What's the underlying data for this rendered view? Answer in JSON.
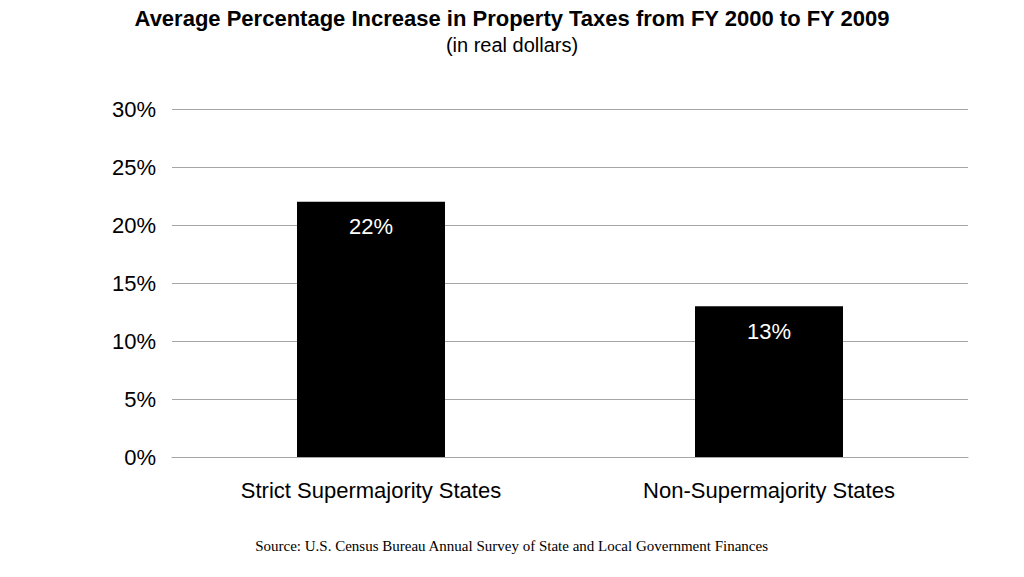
{
  "chart_data": {
    "type": "bar",
    "title": "Average Percentage Increase in Property Taxes from FY 2000 to FY 2009",
    "subtitle": "(in real dollars)",
    "categories": [
      "Strict Supermajority States",
      "Non-Supermajority States"
    ],
    "values": [
      22,
      13
    ],
    "value_labels": [
      "22%",
      "13%"
    ],
    "color": "#000000",
    "ylim": [
      0,
      30
    ],
    "yticks": [
      {
        "value": 0,
        "label": "0%"
      },
      {
        "value": 5,
        "label": "5%"
      },
      {
        "value": 10,
        "label": "10%"
      },
      {
        "value": 15,
        "label": "15%"
      },
      {
        "value": 20,
        "label": "20%"
      },
      {
        "value": 25,
        "label": "25%"
      },
      {
        "value": 30,
        "label": "30%"
      }
    ],
    "grid": true,
    "data_labels": true,
    "annotations": [
      "Source: U.S. Census Bureau Annual Survey of State and Local Government Finances"
    ]
  }
}
